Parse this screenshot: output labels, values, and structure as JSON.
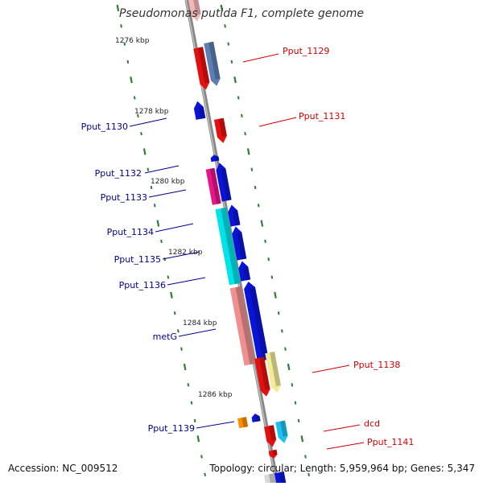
{
  "title": "Pseudomonas putida F1, complete genome",
  "footer": {
    "accession": "Accession: NC_009512",
    "summary": "Topology: circular; Length: 5,959,964 bp; Genes: 5,347"
  },
  "colors": {
    "forward_label": "#cc0000",
    "reverse_label": "#00008b",
    "backbone": "#808080",
    "tick": "#2e7d32"
  },
  "ruler": [
    "1276 kbp",
    "1278 kbp",
    "1280 kbp",
    "1282 kbp",
    "1284 kbp",
    "1286 kbp"
  ],
  "forward_genes": [
    "Pput_1129",
    "Pput_1131",
    "Pput_1138",
    "dcd",
    "Pput_1141"
  ],
  "reverse_genes": [
    "Pput_1130",
    "Pput_1132",
    "Pput_1133",
    "Pput_1134",
    "Pput_1135",
    "Pput_1136",
    "metG",
    "Pput_1139"
  ]
}
